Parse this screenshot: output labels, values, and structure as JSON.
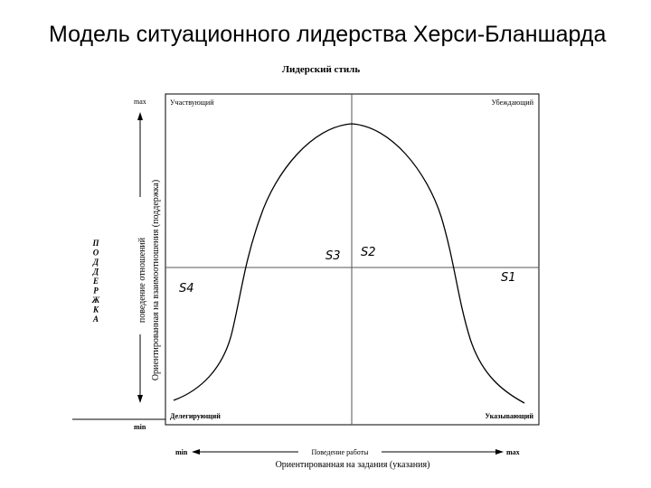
{
  "slide": {
    "title": "Модель ситуационного лидерства Херси-Бланшарда"
  },
  "diagram": {
    "heading": "Лидерский стиль",
    "quadrants": {
      "top_left": "Участвующий",
      "top_right": "Убеждающий",
      "bottom_left": "Делегирующий",
      "bottom_right": "Указывающий"
    },
    "y_axis": {
      "max": "max",
      "min": "min",
      "label_line1": "Ориентированная на взаимоотношения (поддержка)",
      "label_line2": "поведение отношений",
      "side_letters": [
        "П",
        "О",
        "Д",
        "Д",
        "Е",
        "Р",
        "Ж",
        "К",
        "А"
      ]
    },
    "x_axis": {
      "min": "min",
      "max": "max",
      "label_line1": "Поведение работы",
      "label_line2": "Ориентированная на задания (указания)"
    },
    "style_marks": {
      "s1": "S1",
      "s2": "S2",
      "s3": "S3",
      "s4": "S4"
    },
    "colors": {
      "ink": "#000000",
      "grid": "#555555",
      "background": "#ffffff"
    }
  }
}
